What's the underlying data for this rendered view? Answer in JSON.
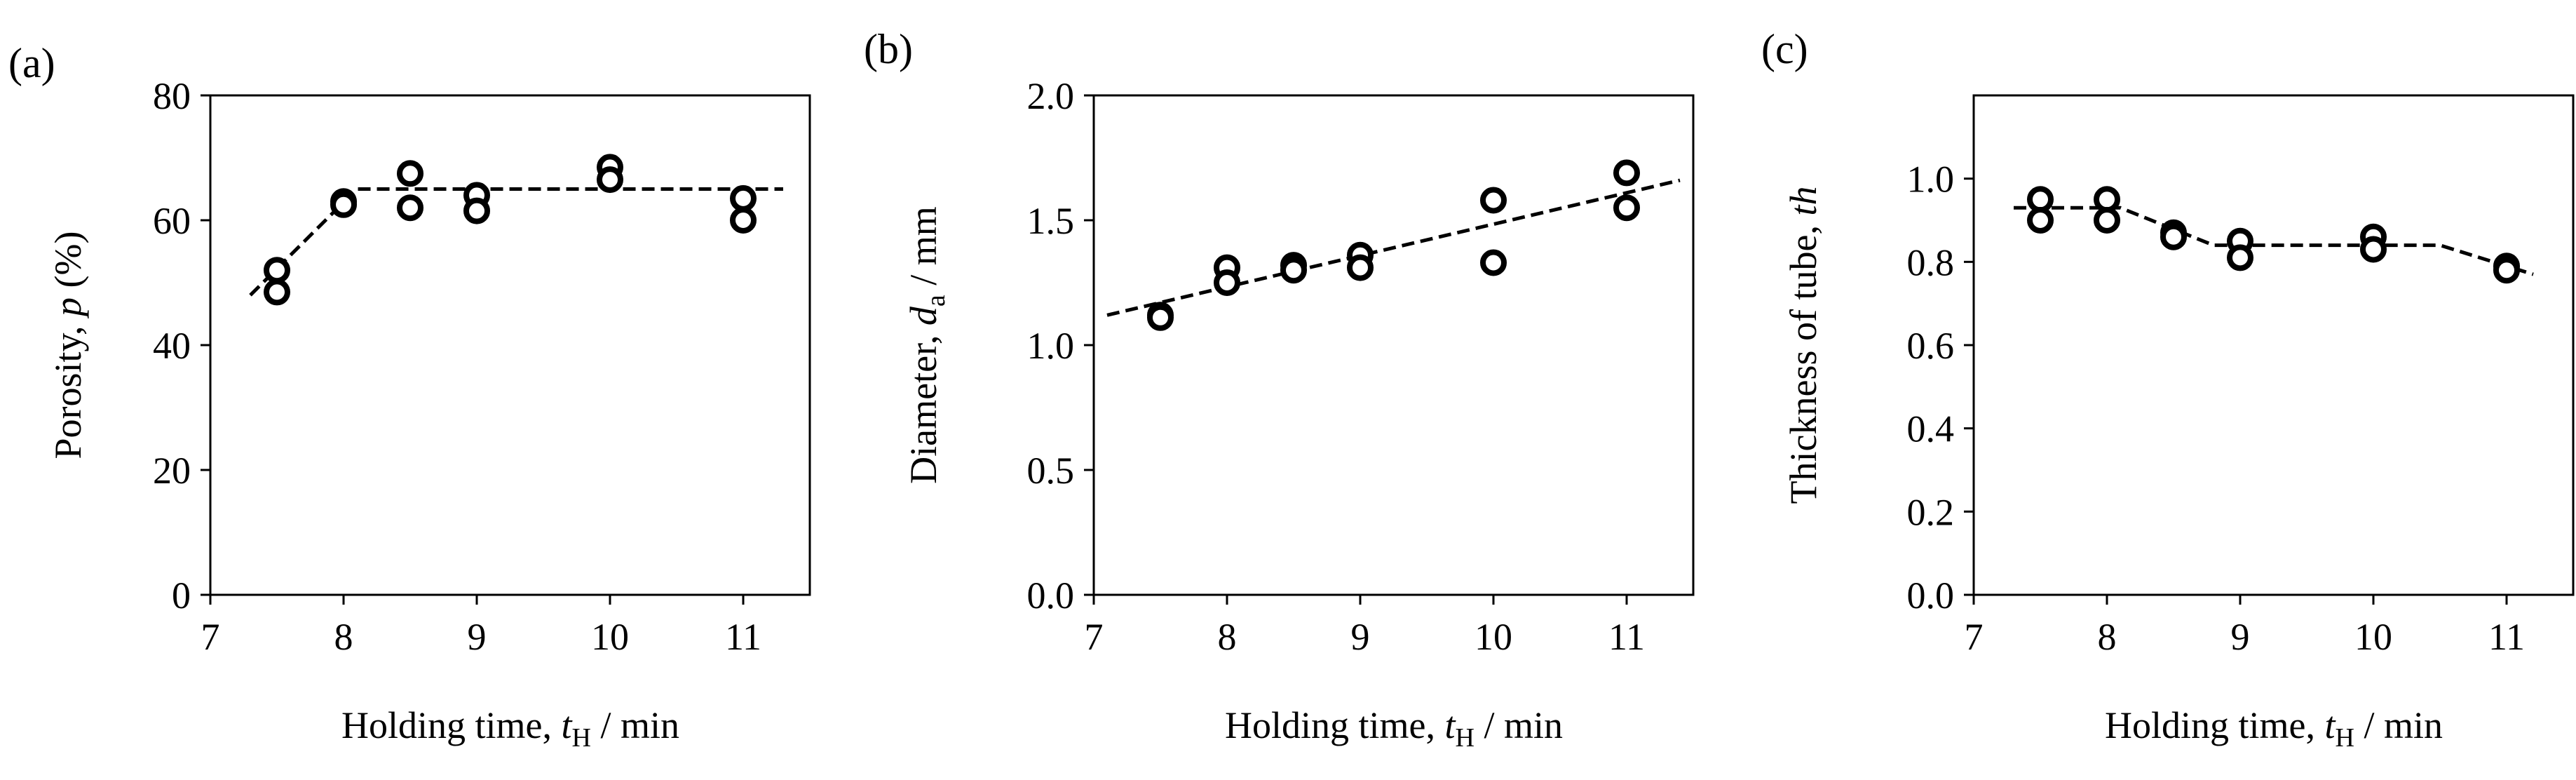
{
  "figure": {
    "panels": [
      {
        "panel_label": "(a)",
        "title": "",
        "ylabel_pre": "Porosity, ",
        "ylabel_var": "p",
        "ylabel_post": " (%)",
        "xlabel_pre": "Holding time, ",
        "xlabel_var": "t",
        "xlabel_sub": "H",
        "xlabel_post": " / min"
      },
      {
        "panel_label": "(b)",
        "title": "",
        "ylabel_pre": "Diameter, ",
        "ylabel_var": "d",
        "ylabel_sub": "a",
        "ylabel_post": " / mm",
        "xlabel_pre": "Holding time, ",
        "xlabel_var": "t",
        "xlabel_sub": "H",
        "xlabel_post": " / min"
      },
      {
        "panel_label": "(c)",
        "title": "",
        "ylabel_pre": "Thickness of tube, ",
        "ylabel_var": "th",
        "xlabel_pre": "Holding time, ",
        "xlabel_var": "t",
        "xlabel_sub": "H",
        "xlabel_post": " / min"
      }
    ]
  },
  "chart_data": [
    {
      "type": "scatter",
      "xlim": [
        7,
        11.5
      ],
      "ylim": [
        0,
        80
      ],
      "xticks": [
        7,
        8,
        9,
        10,
        11
      ],
      "xtick_labels": [
        "7",
        "8",
        "9",
        "10",
        "11"
      ],
      "yticks": [
        0,
        20,
        40,
        60,
        80
      ],
      "ytick_labels": [
        "0",
        "20",
        "40",
        "60",
        "80"
      ],
      "grid": false,
      "legend": "none",
      "marker": "open-circle",
      "points": [
        [
          7.5,
          52.0
        ],
        [
          7.5,
          48.5
        ],
        [
          8.0,
          63.0
        ],
        [
          8.0,
          62.5
        ],
        [
          8.5,
          67.5
        ],
        [
          8.5,
          62.0
        ],
        [
          9.0,
          64.0
        ],
        [
          9.0,
          61.5
        ],
        [
          10.0,
          68.5
        ],
        [
          10.0,
          66.5
        ],
        [
          11.0,
          63.5
        ],
        [
          11.0,
          60.0
        ]
      ],
      "trend_line": [
        [
          7.3,
          48.0
        ],
        [
          8.1,
          65.0
        ],
        [
          11.3,
          65.0
        ]
      ]
    },
    {
      "type": "scatter",
      "xlim": [
        7,
        11.5
      ],
      "ylim": [
        0,
        2.0
      ],
      "xticks": [
        7,
        8,
        9,
        10,
        11
      ],
      "xtick_labels": [
        "7",
        "8",
        "9",
        "10",
        "11"
      ],
      "yticks": [
        0,
        0.5,
        1.0,
        1.5,
        2.0
      ],
      "ytick_labels": [
        "0.0",
        "0.5",
        "1.0",
        "1.5",
        "2.0"
      ],
      "grid": false,
      "legend": "none",
      "marker": "open-circle",
      "points": [
        [
          7.5,
          1.12
        ],
        [
          7.5,
          1.11
        ],
        [
          8.0,
          1.31
        ],
        [
          8.0,
          1.25
        ],
        [
          8.5,
          1.32
        ],
        [
          8.5,
          1.3
        ],
        [
          9.0,
          1.36
        ],
        [
          9.0,
          1.31
        ],
        [
          10.0,
          1.58
        ],
        [
          10.0,
          1.33
        ],
        [
          11.0,
          1.69
        ],
        [
          11.0,
          1.55
        ]
      ],
      "trend_line": [
        [
          7.1,
          1.12
        ],
        [
          11.4,
          1.66
        ]
      ]
    },
    {
      "type": "scatter",
      "xlim": [
        7,
        11.5
      ],
      "ylim": [
        0,
        1.2
      ],
      "xticks": [
        7,
        8,
        9,
        10,
        11
      ],
      "xtick_labels": [
        "7",
        "8",
        "9",
        "10",
        "11"
      ],
      "yticks": [
        0,
        0.2,
        0.4,
        0.6,
        0.8,
        1.0
      ],
      "ytick_labels": [
        "0.0",
        "0.2",
        "0.4",
        "0.6",
        "0.8",
        "1.0"
      ],
      "grid": false,
      "legend": "none",
      "marker": "open-circle",
      "points": [
        [
          7.5,
          0.95
        ],
        [
          7.5,
          0.9
        ],
        [
          8.0,
          0.95
        ],
        [
          8.0,
          0.9
        ],
        [
          8.5,
          0.87
        ],
        [
          8.5,
          0.86
        ],
        [
          9.0,
          0.85
        ],
        [
          9.0,
          0.81
        ],
        [
          10.0,
          0.86
        ],
        [
          10.0,
          0.83
        ],
        [
          11.0,
          0.79
        ],
        [
          11.0,
          0.78
        ]
      ],
      "trend_line": [
        [
          7.3,
          0.93
        ],
        [
          8.1,
          0.93
        ],
        [
          8.8,
          0.84
        ],
        [
          10.5,
          0.84
        ],
        [
          11.2,
          0.77
        ]
      ]
    }
  ]
}
